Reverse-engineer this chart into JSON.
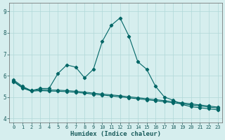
{
  "xlabel": "Humidex (Indice chaleur)",
  "bg_color": "#d6eeee",
  "grid_color": "#b0d8d8",
  "line_color": "#006666",
  "xlim": [
    -0.5,
    23.5
  ],
  "ylim": [
    3.8,
    9.4
  ],
  "xticks": [
    0,
    1,
    2,
    3,
    4,
    5,
    6,
    7,
    8,
    9,
    10,
    11,
    12,
    13,
    14,
    15,
    16,
    17,
    18,
    19,
    20,
    21,
    22,
    23
  ],
  "yticks": [
    4,
    5,
    6,
    7,
    8,
    9
  ],
  "line1_x": [
    0,
    1,
    2,
    3,
    4,
    5,
    6,
    7,
    8,
    9,
    10,
    11,
    12,
    13,
    14,
    15,
    16,
    17,
    18,
    19,
    20,
    21,
    22,
    23
  ],
  "line1_y": [
    5.8,
    5.5,
    5.3,
    5.4,
    5.4,
    6.1,
    6.5,
    6.4,
    5.9,
    6.3,
    7.6,
    8.35,
    8.7,
    7.85,
    6.65,
    6.3,
    5.5,
    5.0,
    4.85,
    4.65,
    4.55,
    4.5,
    4.45,
    4.4
  ],
  "line2_x": [
    0,
    1,
    2,
    3,
    4,
    5,
    6,
    7,
    8,
    9,
    10,
    11,
    12,
    13,
    14,
    15,
    16,
    17,
    18,
    19,
    20,
    21,
    22,
    23
  ],
  "line2_y": [
    5.75,
    5.45,
    5.3,
    5.35,
    5.33,
    5.32,
    5.3,
    5.27,
    5.23,
    5.18,
    5.14,
    5.1,
    5.06,
    5.01,
    4.97,
    4.92,
    4.88,
    4.83,
    4.78,
    4.73,
    4.68,
    4.63,
    4.58,
    4.53
  ],
  "line3_x": [
    0,
    1,
    2,
    3,
    4,
    5,
    6,
    7,
    8,
    9,
    10,
    11,
    12,
    13,
    14,
    15,
    16,
    17,
    18,
    19,
    20,
    21,
    22,
    23
  ],
  "line3_y": [
    5.72,
    5.42,
    5.27,
    5.3,
    5.28,
    5.27,
    5.25,
    5.22,
    5.18,
    5.13,
    5.09,
    5.05,
    5.01,
    4.96,
    4.92,
    4.87,
    4.83,
    4.78,
    4.73,
    4.68,
    4.63,
    4.58,
    4.53,
    4.48
  ]
}
